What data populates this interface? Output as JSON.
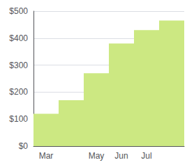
{
  "chart_data": {
    "type": "bar",
    "categories": [
      "Mar",
      null,
      "May",
      "Jun",
      "Jul",
      null
    ],
    "values": [
      120,
      170,
      270,
      380,
      430,
      465
    ],
    "color": "#cce882",
    "ylim": [
      0,
      500
    ],
    "yticks": [
      {
        "value": 0,
        "label": "$0"
      },
      {
        "value": 100,
        "label": "$100"
      },
      {
        "value": 200,
        "label": "$200"
      },
      {
        "value": 300,
        "label": "$300"
      },
      {
        "value": 400,
        "label": "$400"
      },
      {
        "value": 500,
        "label": "$500"
      }
    ],
    "grid": true
  }
}
